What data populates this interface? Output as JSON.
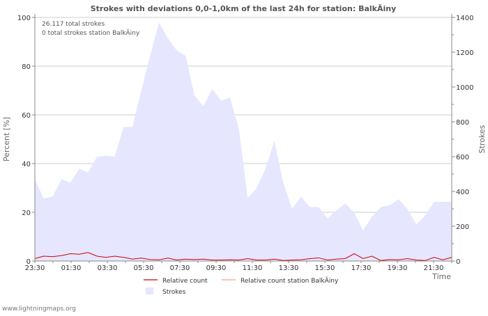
{
  "chart_data": {
    "type": "area",
    "title": "Strokes with deviations 0,0-1,0km of the last 24h for station: BalkÃiny",
    "xlabel": "Time",
    "ylabel_left": "Percent   [%]",
    "ylabel_right": "Strokes",
    "ylim_left": [
      0,
      100
    ],
    "ylim_right": [
      0,
      1400
    ],
    "yticks_left": [
      "0",
      "20",
      "40",
      "60",
      "80",
      "100"
    ],
    "yticks_right": [
      "0",
      "200",
      "400",
      "600",
      "800",
      "1000",
      "1200",
      "1400"
    ],
    "xticks": [
      "23:30",
      "01:30",
      "03:30",
      "05:30",
      "07:30",
      "09:30",
      "11:30",
      "13:30",
      "15:30",
      "17:30",
      "19:30",
      "21:30"
    ],
    "annotations": [
      "26.117 total strokes",
      "0 total strokes station BalkÃiny"
    ],
    "series": [
      {
        "name": "Strokes",
        "axis": "right",
        "color": "#e6e6ff",
        "values": [
          470,
          360,
          370,
          470,
          450,
          530,
          510,
          600,
          605,
          600,
          770,
          770,
          980,
          1180,
          1370,
          1280,
          1210,
          1180,
          950,
          890,
          990,
          920,
          940,
          760,
          360,
          420,
          530,
          690,
          450,
          300,
          370,
          310,
          310,
          245,
          290,
          330,
          280,
          175,
          255,
          310,
          320,
          355,
          300,
          210,
          260,
          340,
          340,
          340
        ]
      },
      {
        "name": "Relative count",
        "axis": "left",
        "color": "#cc0000",
        "values": [
          1.0,
          2.0,
          1.8,
          2.2,
          3.0,
          2.8,
          3.5,
          2.0,
          1.5,
          2.0,
          1.5,
          0.8,
          1.2,
          0.6,
          0.5,
          1.2,
          0.4,
          0.8,
          0.6,
          0.8,
          0.4,
          0.4,
          0.5,
          0.4,
          1.0,
          0.4,
          0.4,
          0.8,
          0.2,
          0.4,
          0.5,
          1.0,
          1.3,
          0.4,
          0.8,
          1.0,
          3.0,
          1.0,
          2.0,
          0.2,
          0.6,
          0.5,
          1.0,
          0.4,
          0.2,
          1.5,
          0.5,
          1.5
        ]
      },
      {
        "name": "Relative count station BalkÃiny",
        "axis": "left",
        "color": "#ff9999",
        "values": [
          0,
          0,
          0,
          0,
          0,
          0,
          0,
          0,
          0,
          0,
          0,
          0,
          0,
          0,
          0,
          0,
          0,
          0,
          0,
          0,
          0,
          0,
          0,
          0,
          0,
          0,
          0,
          0,
          0,
          0,
          0,
          0,
          0,
          0,
          0,
          0,
          0,
          0,
          0,
          0,
          0,
          0,
          0,
          0,
          0,
          0,
          0,
          0
        ]
      }
    ],
    "legend": [
      "Relative count",
      "Relative count station BalkÃiny",
      "Strokes"
    ],
    "grid": true
  },
  "footer": "www.lightningmaps.org"
}
